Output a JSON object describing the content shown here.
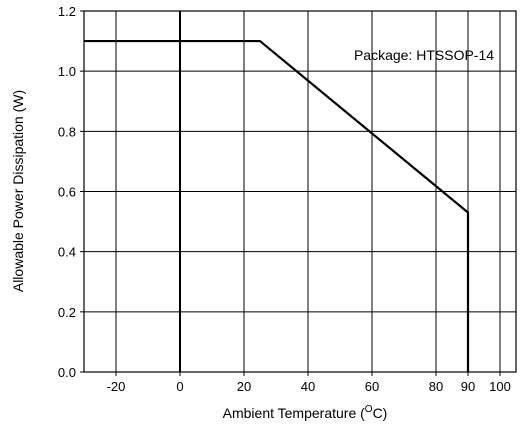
{
  "chart_data": {
    "type": "line",
    "title": "",
    "xlabel": "Ambient Temperature (",
    "xlabel_sup": "O",
    "xlabel_end": "C)",
    "ylabel": "Allowable Power Dissipation (W)",
    "annotation": "Package: HTSSOP-14",
    "xlim": [
      -30,
      105
    ],
    "ylim": [
      0.0,
      1.2
    ],
    "x_ticks": [
      -20,
      0,
      20,
      40,
      60,
      80,
      90,
      100
    ],
    "x_tick_labels": [
      "-20",
      "0",
      "20",
      "40",
      "60",
      "80",
      "90",
      "100"
    ],
    "x_grid": [
      -20,
      0,
      20,
      40,
      60,
      80,
      90,
      100
    ],
    "y_ticks": [
      0.0,
      0.2,
      0.4,
      0.6,
      0.8,
      1.0,
      1.2
    ],
    "y_tick_labels": [
      "0.0",
      "0.2",
      "0.4",
      "0.6",
      "0.8",
      "1.0",
      "1.2"
    ],
    "grid": true,
    "highlight_vline_x": 0,
    "series": [
      {
        "x": [
          -30,
          25,
          90,
          90
        ],
        "y": [
          1.1,
          1.1,
          0.53,
          0.0
        ]
      }
    ],
    "colors": {
      "line": "#000000",
      "grid": "#000000",
      "axis": "#000000"
    }
  }
}
